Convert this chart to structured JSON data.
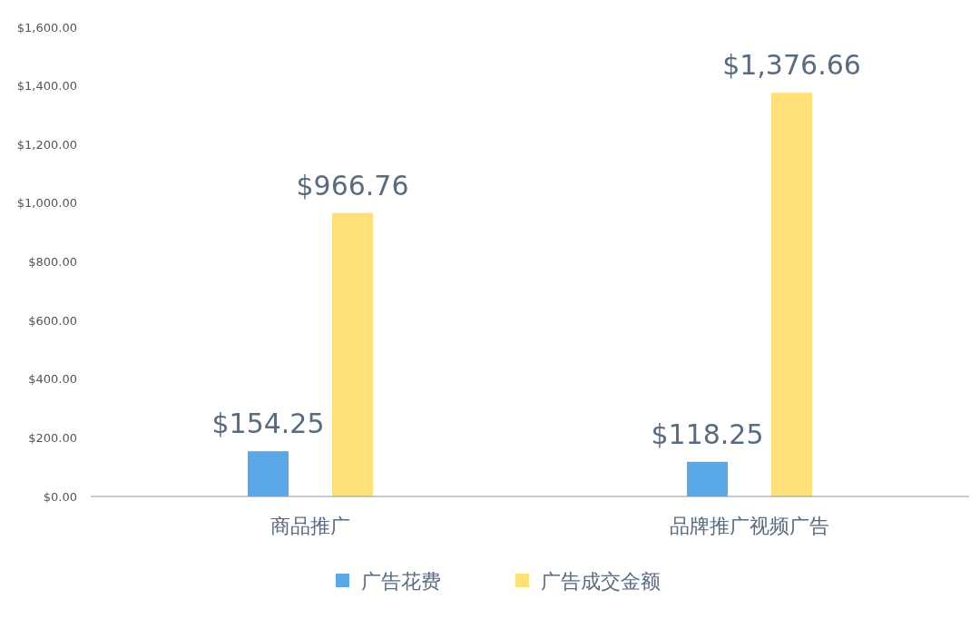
{
  "chart_data": {
    "type": "bar",
    "categories": [
      "商品推广",
      "品牌推广视频广告"
    ],
    "series": [
      {
        "name": "广告花费",
        "color": "#5ba8e8",
        "values": [
          154.25,
          118.25
        ],
        "value_labels": [
          "$154.25",
          "$118.25"
        ]
      },
      {
        "name": "广告成交金额",
        "color": "#ffdf77",
        "values": [
          966.76,
          1376.66
        ],
        "value_labels": [
          "$966.76",
          "$1,376.66"
        ]
      }
    ],
    "ylim": [
      0,
      1600
    ],
    "yticks": [
      {
        "value": 0,
        "label": "$0.00"
      },
      {
        "value": 200,
        "label": "$200.00"
      },
      {
        "value": 400,
        "label": "$400.00"
      },
      {
        "value": 600,
        "label": "$600.00"
      },
      {
        "value": 800,
        "label": "$800.00"
      },
      {
        "value": 1000,
        "label": "$1,000.00"
      },
      {
        "value": 1200,
        "label": "$1,200.00"
      },
      {
        "value": 1400,
        "label": "$1,400.00"
      },
      {
        "value": 1600,
        "label": "$1,600.00"
      }
    ],
    "grid": false,
    "legend": "bottom"
  }
}
